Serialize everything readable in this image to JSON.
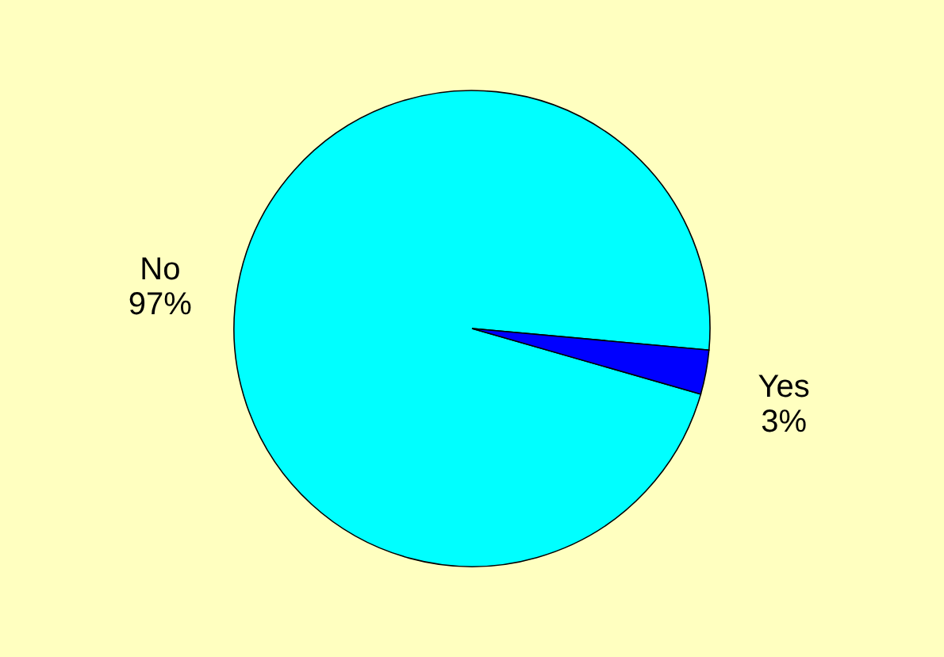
{
  "chart_data": {
    "type": "pie",
    "categories": [
      "No",
      "Yes"
    ],
    "values": [
      97,
      3
    ],
    "value_labels": [
      "97%",
      "3%"
    ],
    "colors": [
      "#00ffff",
      "#0000ff"
    ],
    "legend": false
  }
}
